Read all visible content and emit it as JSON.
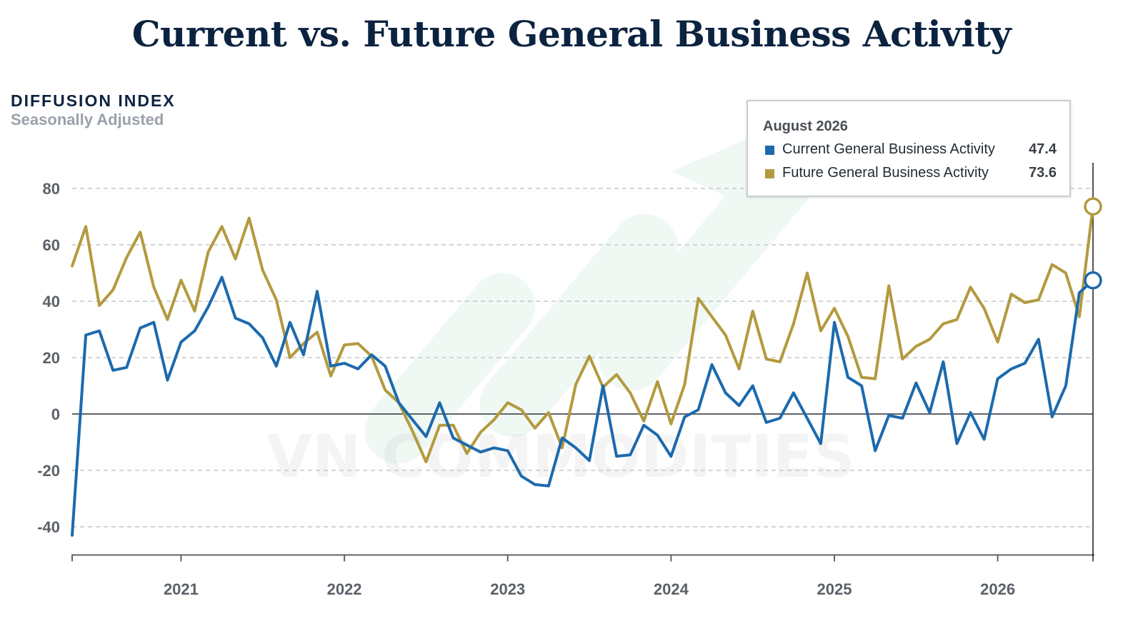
{
  "title": "Current vs. Future General Business Activity",
  "watermark": "VN COMMODITIES",
  "colors": {
    "current": "#1c6aad",
    "future": "#b39a3f",
    "title": "#0c2340",
    "grid": "#c4c8cc",
    "zero": "#5e6369"
  },
  "tooltip": {
    "date": "August 2026",
    "rows": [
      {
        "name": "Current General Business Activity",
        "value": "47.4"
      },
      {
        "name": "Future General Business Activity",
        "value": "73.6"
      }
    ]
  },
  "chart_data": {
    "type": "line",
    "ylabel": "DIFFUSION INDEX",
    "ysublabel": "Seasonally Adjusted",
    "ylim": [
      -50,
      80
    ],
    "yticks": [
      -40,
      -20,
      0,
      20,
      40,
      60,
      80
    ],
    "x_start": "2020-05",
    "x_end": "2026-08",
    "xtick_labels": [
      "2021",
      "2022",
      "2023",
      "2024",
      "2025",
      "2026"
    ],
    "grid": "horizontal-dashed",
    "legend": "tooltip-top-right",
    "series": [
      {
        "name": "Current General Business Activity",
        "color": "#1c6aad",
        "values": [
          -43,
          28,
          29.5,
          15.5,
          16.5,
          30.5,
          32.5,
          12,
          25.5,
          29.5,
          38,
          48.5,
          34,
          32,
          27,
          17,
          32.5,
          21,
          43.5,
          17,
          18,
          16,
          21,
          17,
          4,
          -2,
          -8,
          4,
          -8.5,
          -11,
          -13.5,
          -12,
          -13,
          -22,
          -25,
          -25.5,
          -8.5,
          -12,
          -16.5,
          10,
          -15,
          -14.5,
          -4,
          -7.5,
          -15,
          -1,
          1.5,
          17.5,
          7.5,
          3,
          10,
          -3,
          -1.5,
          7.5,
          -1.5,
          -10.5,
          32.5,
          13,
          10,
          -13,
          -0.5,
          -1.5,
          11,
          0.5,
          18.5,
          -10.5,
          0.5,
          -9,
          12.5,
          16,
          18,
          26.5,
          -1,
          10,
          43,
          47.4
        ]
      },
      {
        "name": "Future General Business Activity",
        "color": "#b39a3f",
        "values": [
          52.5,
          66.5,
          38.5,
          44,
          55.5,
          64.5,
          45,
          33.5,
          47.5,
          36.5,
          57.5,
          66.5,
          55,
          69.5,
          51,
          40.5,
          20,
          25,
          29,
          13.5,
          24.5,
          25,
          20.5,
          8.5,
          4,
          -6,
          -17,
          -4,
          -4,
          -14,
          -6.5,
          -2,
          4,
          1.5,
          -5,
          0.5,
          -12,
          10.5,
          20.5,
          9.5,
          14,
          7.5,
          -2.5,
          11.5,
          -3.5,
          10.5,
          41,
          34.5,
          28,
          16,
          36.5,
          19.5,
          18.5,
          32,
          50,
          29.5,
          37.5,
          27.5,
          13,
          12.5,
          45.5,
          19.5,
          24,
          26.5,
          32,
          33.5,
          45,
          37.5,
          25.5,
          42.5,
          39.5,
          40.5,
          53,
          50,
          34.5,
          73.6
        ]
      }
    ]
  }
}
